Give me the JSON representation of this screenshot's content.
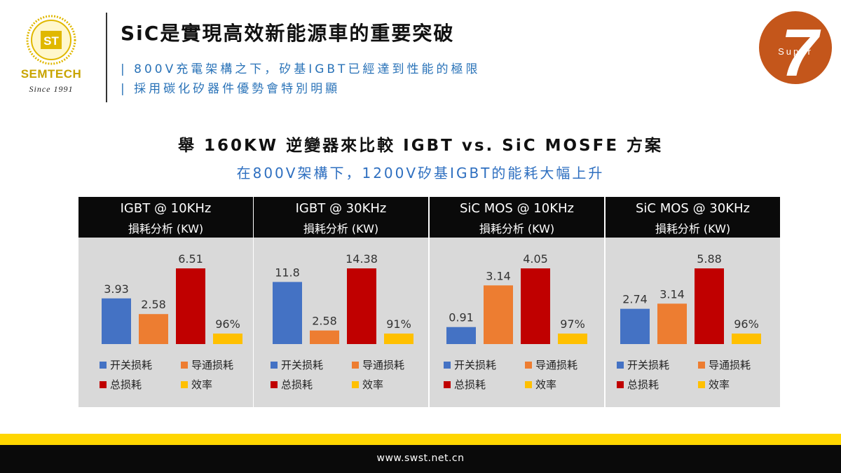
{
  "header": {
    "logo_text": "SEMTECH",
    "logo_since": "Since 1991",
    "logo_mark": "ST",
    "title": "SiC是實現高效新能源車的重要突破",
    "subtitle_1": "| 800V充電架構之下，矽基IGBT已經達到性能的極限",
    "subtitle_2": "| 採用碳化矽器件優勢會特別明顯",
    "badge_number": "7",
    "badge_word": "Super"
  },
  "headline": "舉 160KW 逆變器來比較 IGBT vs. SiC MOSFE 方案",
  "subheadline": "在800V架構下，1200V矽基IGBT的能耗大幅上升",
  "colors": {
    "switching": "#4472c4",
    "conduction": "#ed7d31",
    "total": "#c00000",
    "efficiency": "#ffc000"
  },
  "chart_data": [
    {
      "type": "bar",
      "title": "IGBT @ 10KHz",
      "subtitle": "損耗分析 (KW)",
      "categories": [
        "开关损耗",
        "导通损耗",
        "总损耗",
        "效率"
      ],
      "values": [
        3.93,
        2.58,
        6.51,
        96
      ],
      "labels": [
        "3.93",
        "2.58",
        "6.51",
        "96%"
      ]
    },
    {
      "type": "bar",
      "title": "IGBT @ 30KHz",
      "subtitle": "損耗分析 (KW)",
      "categories": [
        "开关损耗",
        "导通损耗",
        "总损耗",
        "效率"
      ],
      "values": [
        11.8,
        2.58,
        14.38,
        91
      ],
      "labels": [
        "11.8",
        "2.58",
        "14.38",
        "91%"
      ]
    },
    {
      "type": "bar",
      "title": "SiC MOS @ 10KHz",
      "subtitle": "損耗分析 (KW)",
      "categories": [
        "开关损耗",
        "导通损耗",
        "总损耗",
        "效率"
      ],
      "values": [
        0.91,
        3.14,
        4.05,
        97
      ],
      "labels": [
        "0.91",
        "3.14",
        "4.05",
        "97%"
      ]
    },
    {
      "type": "bar",
      "title": "SiC MOS @ 30KHz",
      "subtitle": "損耗分析 (KW)",
      "categories": [
        "开关损耗",
        "导通损耗",
        "总损耗",
        "效率"
      ],
      "values": [
        2.74,
        3.14,
        5.88,
        96
      ],
      "labels": [
        "2.74",
        "3.14",
        "5.88",
        "96%"
      ]
    }
  ],
  "footer": {
    "url": "www.swst.net.cn"
  }
}
